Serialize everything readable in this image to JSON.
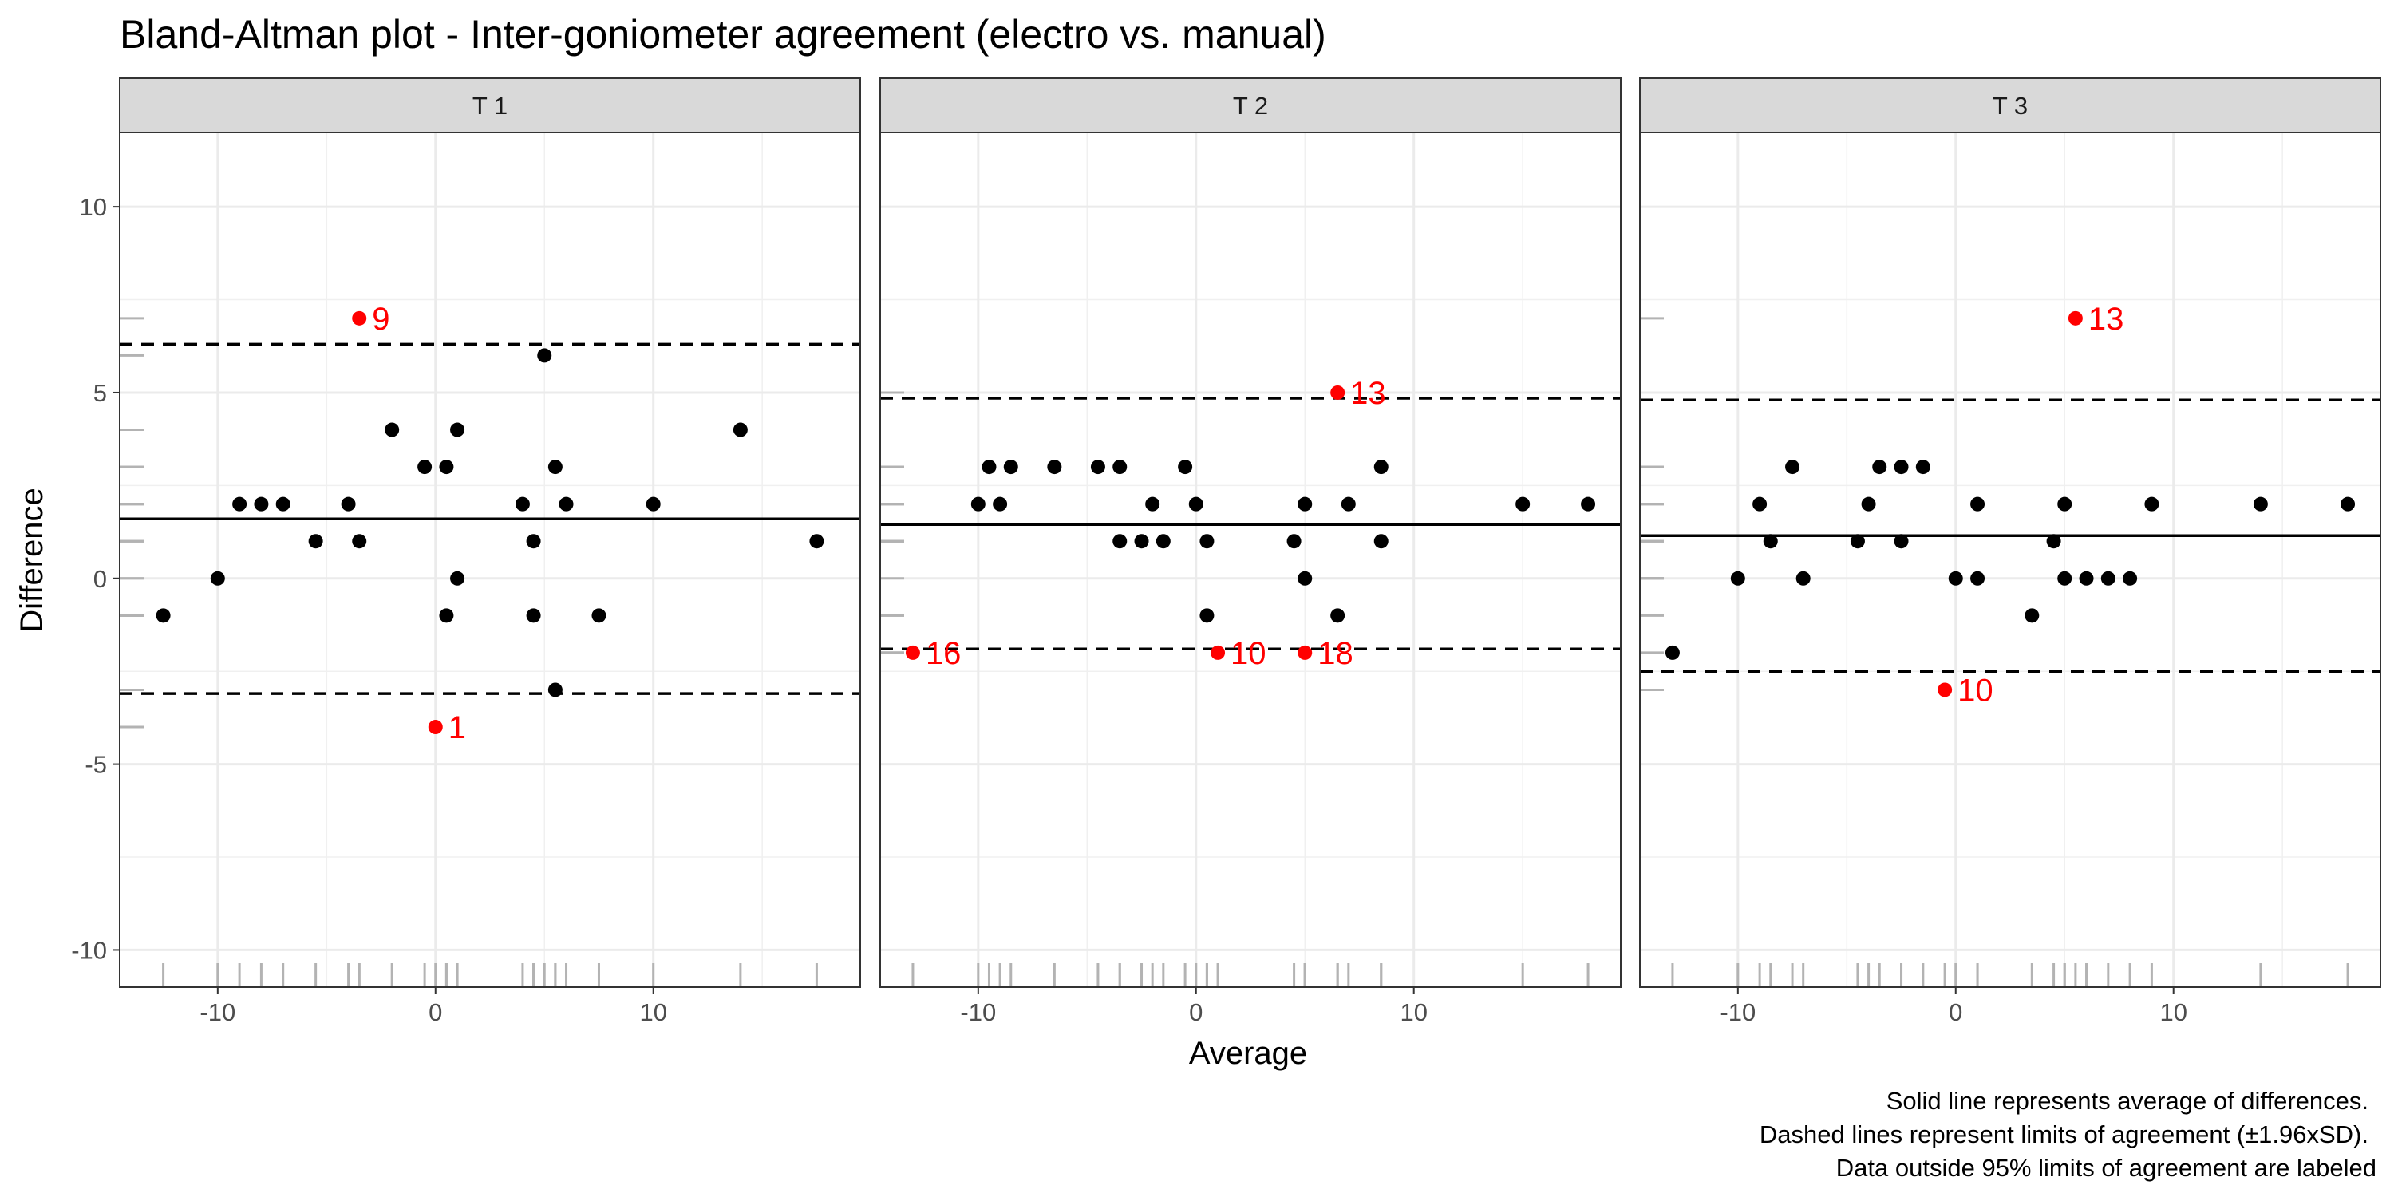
{
  "chart_data": {
    "type": "scatter",
    "title": "Bland-Altman plot - Inter-goniometer agreement (electro vs. manual)",
    "xlabel": "Average",
    "ylabel": "Difference",
    "xlim": [
      -14.5,
      19.5
    ],
    "ylim": [
      -11,
      12
    ],
    "x_ticks": [
      -10,
      0,
      10
    ],
    "x_tick_labels": [
      "-10",
      "0",
      "10"
    ],
    "y_ticks": [
      -10,
      -5,
      0,
      5,
      10
    ],
    "y_tick_labels": [
      "-10",
      "-5",
      "0",
      "5",
      "10"
    ],
    "grid": true,
    "colors": {
      "point": "#000000",
      "outlier": "#ff0000",
      "rug": "#b3b3b3"
    },
    "caption": [
      "Solid line represents average of differences.",
      "Dashed lines represent limits of agreement (±1.96xSD).",
      "Data outside 95% limits of agreement are labeled"
    ],
    "panels": [
      {
        "label": "T 1",
        "mean_diff": 1.6,
        "loa_lower": -3.1,
        "loa_upper": 6.3,
        "points": [
          [
            -12.5,
            -1
          ],
          [
            -10,
            0
          ],
          [
            -9,
            2
          ],
          [
            -8,
            2
          ],
          [
            -7,
            2
          ],
          [
            -5.5,
            1
          ],
          [
            -4,
            2
          ],
          [
            -3.5,
            1
          ],
          [
            -2,
            4
          ],
          [
            -0.5,
            3
          ],
          [
            0.5,
            3
          ],
          [
            1,
            4
          ],
          [
            0.5,
            -1
          ],
          [
            1,
            0
          ],
          [
            4,
            2
          ],
          [
            4.5,
            1
          ],
          [
            4.5,
            -1
          ],
          [
            5,
            6
          ],
          [
            5.5,
            3
          ],
          [
            5.5,
            -3
          ],
          [
            6,
            2
          ],
          [
            7.5,
            -1
          ],
          [
            10,
            2
          ],
          [
            14,
            4
          ],
          [
            17.5,
            1
          ]
        ],
        "outliers": [
          {
            "x": -3.5,
            "y": 7,
            "label": "9"
          },
          {
            "x": 0,
            "y": -4,
            "label": "1"
          }
        ]
      },
      {
        "label": "T 2",
        "mean_diff": 1.45,
        "loa_lower": -1.9,
        "loa_upper": 4.85,
        "points": [
          [
            -10,
            2
          ],
          [
            -9.5,
            3
          ],
          [
            -9,
            2
          ],
          [
            -8.5,
            3
          ],
          [
            -6.5,
            3
          ],
          [
            -4.5,
            3
          ],
          [
            -3.5,
            3
          ],
          [
            -3.5,
            1
          ],
          [
            -2.5,
            1
          ],
          [
            -2,
            2
          ],
          [
            -1.5,
            1
          ],
          [
            -0.5,
            3
          ],
          [
            0,
            2
          ],
          [
            0.5,
            1
          ],
          [
            0.5,
            -1
          ],
          [
            4.5,
            1
          ],
          [
            5,
            2
          ],
          [
            5,
            0
          ],
          [
            6.5,
            -1
          ],
          [
            7,
            2
          ],
          [
            8.5,
            3
          ],
          [
            8.5,
            1
          ],
          [
            15,
            2
          ],
          [
            18,
            2
          ]
        ],
        "outliers": [
          {
            "x": -13,
            "y": -2,
            "label": "16"
          },
          {
            "x": 1,
            "y": -2,
            "label": "10"
          },
          {
            "x": 5,
            "y": -2,
            "label": "18"
          },
          {
            "x": 6.5,
            "y": 5,
            "label": "13"
          }
        ]
      },
      {
        "label": "T 3",
        "mean_diff": 1.15,
        "loa_lower": -2.5,
        "loa_upper": 4.8,
        "points": [
          [
            -13,
            -2
          ],
          [
            -10,
            0
          ],
          [
            -9,
            2
          ],
          [
            -8.5,
            1
          ],
          [
            -7.5,
            3
          ],
          [
            -7,
            0
          ],
          [
            -4.5,
            1
          ],
          [
            -4,
            2
          ],
          [
            -3.5,
            3
          ],
          [
            -2.5,
            3
          ],
          [
            -2.5,
            1
          ],
          [
            -1.5,
            3
          ],
          [
            0,
            0
          ],
          [
            1,
            0
          ],
          [
            1,
            2
          ],
          [
            3.5,
            -1
          ],
          [
            4.5,
            1
          ],
          [
            5,
            2
          ],
          [
            5,
            0
          ],
          [
            6,
            0
          ],
          [
            7,
            0
          ],
          [
            8,
            0
          ],
          [
            9,
            2
          ],
          [
            14,
            2
          ],
          [
            18,
            2
          ]
        ],
        "outliers": [
          {
            "x": 5.5,
            "y": 7,
            "label": "13"
          },
          {
            "x": -0.5,
            "y": -3,
            "label": "10"
          }
        ]
      }
    ]
  }
}
